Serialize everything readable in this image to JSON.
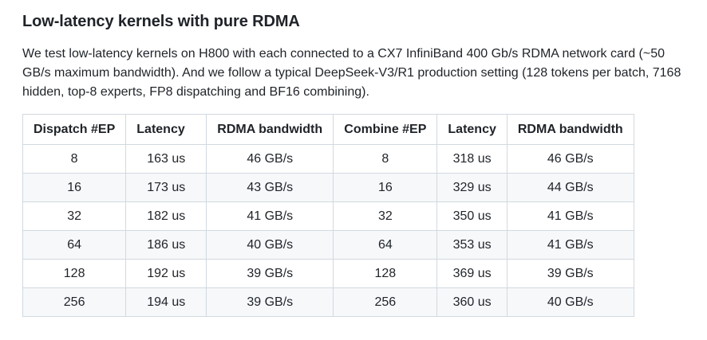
{
  "section": {
    "title": "Low-latency kernels with pure RDMA",
    "intro": "We test low-latency kernels on H800 with each connected to a CX7 InfiniBand 400 Gb/s RDMA network card (~50 GB/s maximum bandwidth). And we follow a typical DeepSeek-V3/R1 production setting (128 tokens per batch, 7168 hidden, top-8 experts, FP8 dispatching and BF16 combining)."
  },
  "table": {
    "headers": [
      "Dispatch #EP",
      "Latency",
      "RDMA bandwidth",
      "Combine #EP",
      "Latency",
      "RDMA bandwidth"
    ],
    "rows": [
      [
        "8",
        "163 us",
        "46 GB/s",
        "8",
        "318 us",
        "46 GB/s"
      ],
      [
        "16",
        "173 us",
        "43 GB/s",
        "16",
        "329 us",
        "44 GB/s"
      ],
      [
        "32",
        "182 us",
        "41 GB/s",
        "32",
        "350 us",
        "41 GB/s"
      ],
      [
        "64",
        "186 us",
        "40 GB/s",
        "64",
        "353 us",
        "41 GB/s"
      ],
      [
        "128",
        "192 us",
        "39 GB/s",
        "128",
        "369 us",
        "39 GB/s"
      ],
      [
        "256",
        "194 us",
        "39 GB/s",
        "256",
        "360 us",
        "40 GB/s"
      ]
    ]
  }
}
